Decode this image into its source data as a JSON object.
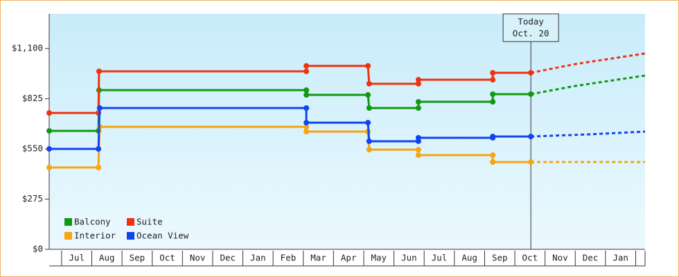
{
  "chart_data": {
    "type": "line",
    "xlim": [
      -0.41,
      19.31
    ],
    "xticks": [
      {
        "value": 0.5,
        "label": "Jul"
      },
      {
        "value": 1.5,
        "label": "Aug"
      },
      {
        "value": 2.5,
        "label": "Sep"
      },
      {
        "value": 3.5,
        "label": "Oct"
      },
      {
        "value": 4.5,
        "label": "Nov"
      },
      {
        "value": 5.5,
        "label": "Dec"
      },
      {
        "value": 6.5,
        "label": "Jan"
      },
      {
        "value": 7.5,
        "label": "Feb"
      },
      {
        "value": 8.5,
        "label": "Mar"
      },
      {
        "value": 9.5,
        "label": "Apr"
      },
      {
        "value": 10.5,
        "label": "May"
      },
      {
        "value": 11.5,
        "label": "Jun"
      },
      {
        "value": 12.5,
        "label": "Jul"
      },
      {
        "value": 13.5,
        "label": "Aug"
      },
      {
        "value": 14.5,
        "label": "Sep"
      },
      {
        "value": 15.5,
        "label": "Oct"
      },
      {
        "value": 16.5,
        "label": "Nov"
      },
      {
        "value": 17.5,
        "label": "Dec"
      },
      {
        "value": 18.5,
        "label": "Jan"
      }
    ],
    "ylim": [
      0,
      1290
    ],
    "yticks": [
      {
        "value": 0,
        "label": "$0"
      },
      {
        "value": 275,
        "label": "$275"
      },
      {
        "value": 550,
        "label": "$550"
      },
      {
        "value": 825,
        "label": "$825"
      },
      {
        "value": 1100,
        "label": "$1,100"
      }
    ],
    "grid": false,
    "legend": "bottom-left",
    "annotation": {
      "x": 15.53,
      "lines": [
        "Today",
        "Oct. 20"
      ]
    },
    "series": [
      {
        "name": "Balcony",
        "color": "#119911",
        "x": [
          -0.41,
          1.22,
          1.24,
          8.1,
          8.1,
          10.14,
          10.18,
          11.81,
          11.81,
          14.27,
          14.27,
          15.53
        ],
        "values": [
          649,
          649,
          872,
          872,
          846,
          846,
          774,
          774,
          808,
          808,
          850,
          850
        ],
        "forecast": {
          "x": [
            15.53,
            17,
            19.31
          ],
          "values": [
            850,
            895,
            952
          ]
        }
      },
      {
        "name": "Suite",
        "color": "#ee3311",
        "x": [
          -0.41,
          1.22,
          1.24,
          8.1,
          8.1,
          10.14,
          10.18,
          11.81,
          11.81,
          14.27,
          14.27,
          15.53
        ],
        "values": [
          747,
          747,
          975,
          975,
          1005,
          1005,
          907,
          907,
          929,
          929,
          967,
          967
        ],
        "forecast": {
          "x": [
            15.53,
            17,
            19.31
          ],
          "values": [
            967,
            1015,
            1073
          ]
        }
      },
      {
        "name": "Interior",
        "color": "#f5a511",
        "x": [
          -0.41,
          1.22,
          1.26,
          8.1,
          8.1,
          10.14,
          10.18,
          11.81,
          11.81,
          14.27,
          14.27,
          15.53
        ],
        "values": [
          448,
          448,
          671,
          671,
          645,
          645,
          546,
          546,
          516,
          516,
          478,
          478
        ],
        "forecast": {
          "x": [
            15.53,
            19.31
          ],
          "values": [
            478,
            478
          ]
        }
      },
      {
        "name": "Ocean View",
        "color": "#1144ee",
        "x": [
          -0.41,
          1.22,
          1.26,
          8.1,
          8.1,
          10.14,
          10.18,
          11.81,
          11.81,
          14.27,
          14.27,
          15.53
        ],
        "values": [
          550,
          550,
          774,
          774,
          694,
          694,
          592,
          592,
          611,
          611,
          618,
          618
        ],
        "forecast": {
          "x": [
            15.53,
            17.5,
            19.31
          ],
          "values": [
            618,
            630,
            645
          ]
        }
      }
    ]
  }
}
